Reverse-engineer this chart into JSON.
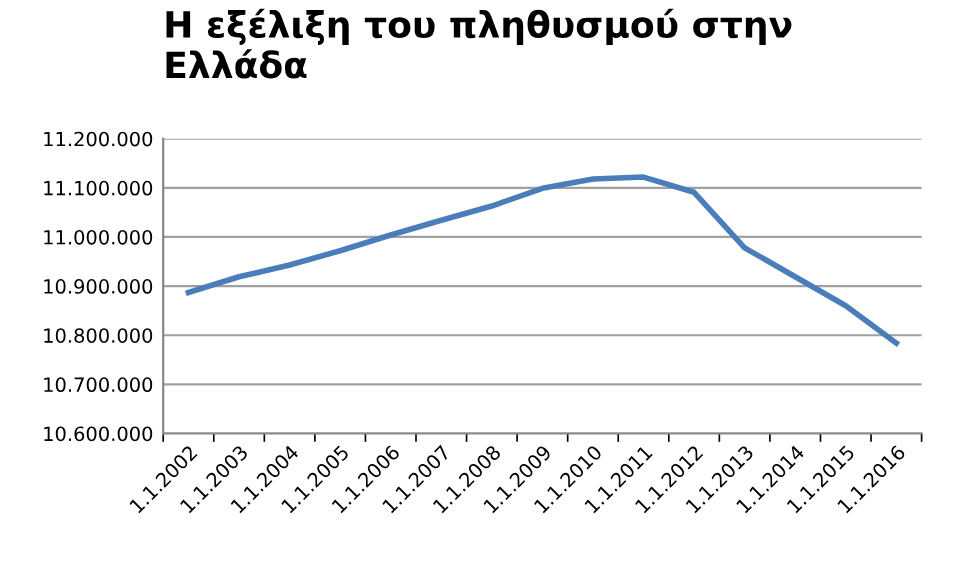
{
  "chart_data": {
    "type": "line",
    "title": "Η εξέλιξη του πληθυσμού στην\nΕλλάδα",
    "categories": [
      "1.1.2002",
      "1.1.2003",
      "1.1.2004",
      "1.1.2005",
      "1.1.2006",
      "1.1.2007",
      "1.1.2008",
      "1.1.2009",
      "1.1.2010",
      "1.1.2011",
      "1.1.2012",
      "1.1.2013",
      "1.1.2014",
      "1.1.2015",
      "1.1.2016"
    ],
    "series": [
      {
        "color": "#4a7ebb",
        "values": [
          10887000,
          10919000,
          10943000,
          10972000,
          11004000,
          11034000,
          11063000,
          11099000,
          11118000,
          11122000,
          11091000,
          10978000,
          10919000,
          10860000,
          10784000
        ]
      }
    ],
    "ylim": [
      10600000,
      11200000
    ],
    "yticks": [
      {
        "value": 10600000,
        "label": "10.600.000"
      },
      {
        "value": 10700000,
        "label": "10.700.000"
      },
      {
        "value": 10800000,
        "label": "10.800.000"
      },
      {
        "value": 10900000,
        "label": "10.900.000"
      },
      {
        "value": 11000000,
        "label": "11.000.000"
      },
      {
        "value": 11100000,
        "label": "11.100.000"
      },
      {
        "value": 11200000,
        "label": "11.200.000"
      }
    ],
    "grid": "y",
    "marker": "none",
    "line_style": "solid",
    "legend": false
  }
}
